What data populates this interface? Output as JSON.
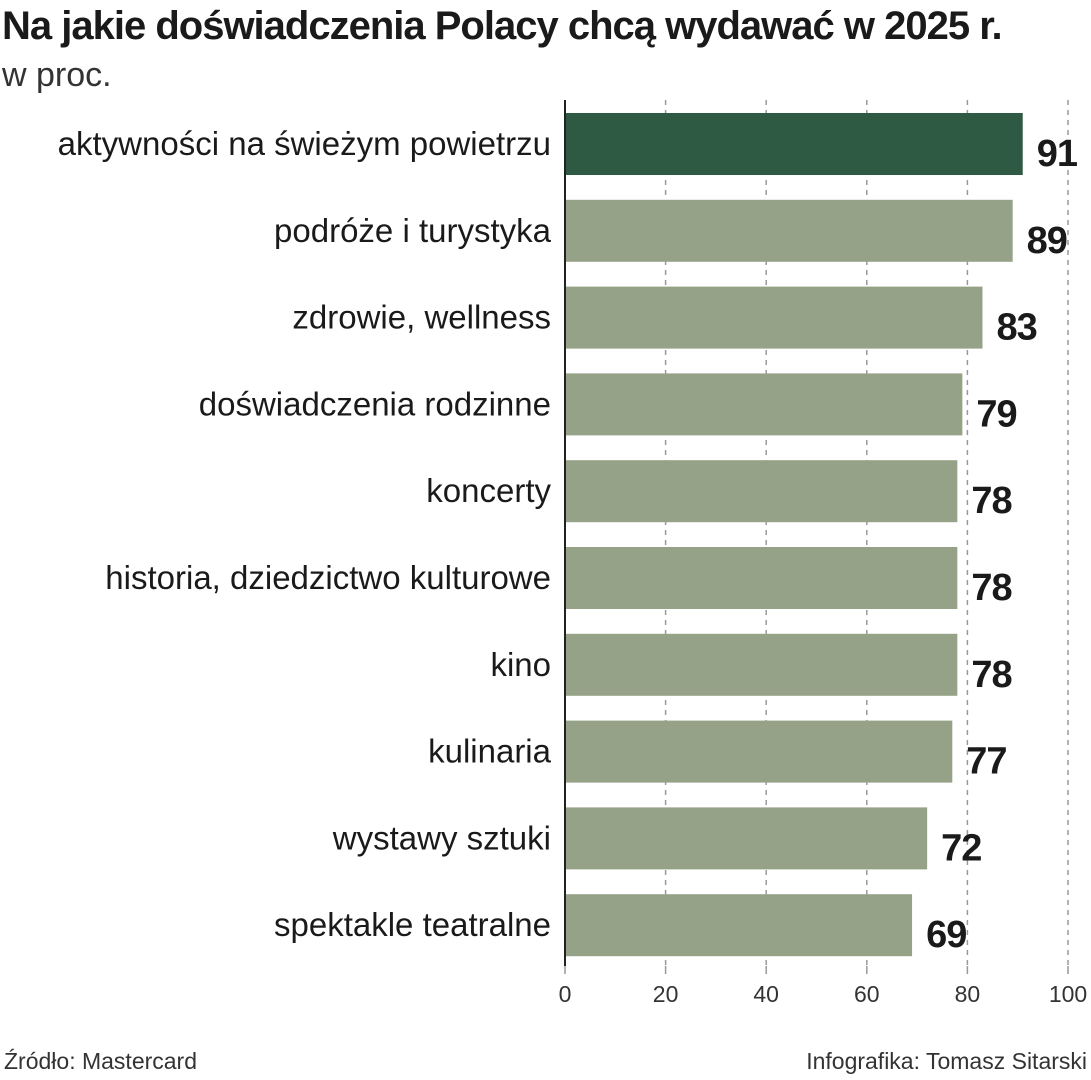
{
  "title": "Na jakie doświadczenia Polacy chcą wydawać w 2025 r.",
  "subtitle": "w proc.",
  "source": "Źródło: Mastercard",
  "credit": "Infografika: Tomasz Sitarski",
  "colors": {
    "highlight": "#2e5a44",
    "bar": "#96a287",
    "grid": "#999999",
    "axis": "#222222"
  },
  "chart_data": {
    "type": "bar",
    "orientation": "horizontal",
    "title": "Na jakie doświadczenia Polacy chcą wydawać w 2025 r.",
    "unit": "w proc.",
    "categories": [
      "aktywności na świeżym powietrzu",
      "podróże i turystyka",
      "zdrowie, wellness",
      "doświadczenia rodzinne",
      "koncerty",
      "historia, dziedzictwo kulturowe",
      "kino",
      "kulinaria",
      "wystawy sztuki",
      "spektakle teatralne"
    ],
    "values": [
      91,
      89,
      83,
      79,
      78,
      78,
      78,
      77,
      72,
      69
    ],
    "highlighted_index": 0,
    "xlim": [
      0,
      100
    ],
    "xticks": [
      0,
      20,
      40,
      60,
      80,
      100
    ],
    "grid": true
  }
}
